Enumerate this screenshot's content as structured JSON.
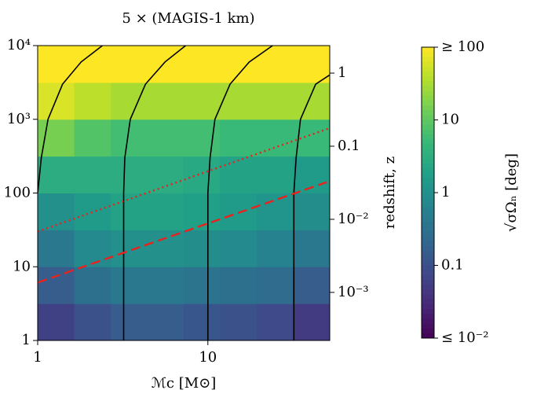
{
  "chart_data": {
    "type": "heatmap",
    "title": "5 × (MAGIS-1 km)",
    "x_label": "ℳc [M⊙]",
    "y2_label": "redshift, z",
    "colorbar_label": "√σΩₙ [deg]",
    "log_x": true,
    "log_y": true,
    "log_y2": true,
    "log_color": true,
    "colormap": "viridis",
    "xlim": [
      1,
      52
    ],
    "xticks": [
      1,
      10
    ],
    "ylim": [
      1,
      10000
    ],
    "yticks": [
      1,
      10,
      100,
      {
        "value": 1000,
        "label": "10³"
      },
      {
        "value": 10000,
        "label": "10⁴"
      }
    ],
    "y2lim": [
      0.00022,
      2.38
    ],
    "y2ticks": [
      1,
      0.1,
      {
        "value": 0.01,
        "label": "10⁻²"
      },
      {
        "value": 0.001,
        "label": "10⁻³"
      }
    ],
    "clim": [
      0.01,
      100
    ],
    "cticks": [
      {
        "value": 100,
        "label": "≥ 100"
      },
      10,
      1,
      0.1,
      {
        "value": 0.01,
        "label": "≤ 10⁻²"
      }
    ],
    "heatmap": {
      "x_edges": [
        1,
        1.64,
        2.69,
        4.4,
        7.22,
        11.8,
        19.4,
        31.8,
        52
      ],
      "y_edges": [
        1,
        3.16,
        10,
        31.6,
        100,
        316,
        1000,
        3160,
        10000
      ],
      "z": [
        [
          0.06,
          0.1,
          0.15,
          0.15,
          0.12,
          0.1,
          0.08,
          0.05
        ],
        [
          0.15,
          0.3,
          0.4,
          0.4,
          0.35,
          0.3,
          0.25,
          0.15
        ],
        [
          0.4,
          0.8,
          1,
          1,
          0.9,
          0.8,
          0.6,
          0.4
        ],
        [
          1,
          1.5,
          2,
          2,
          1.8,
          1.5,
          1.2,
          0.9
        ],
        [
          3,
          3,
          3,
          3,
          2.5,
          2,
          2,
          1.5
        ],
        [
          15,
          8,
          6,
          6,
          6,
          5,
          5,
          5
        ],
        [
          60,
          40,
          30,
          30,
          30,
          30,
          30,
          30
        ],
        [
          100,
          100,
          100,
          100,
          100,
          100,
          100,
          100
        ]
      ]
    },
    "series": [
      {
        "color": "#000000",
        "style": "solid",
        "x": [
          1,
          1.05,
          1.15,
          1.4,
          1.8,
          2.4
        ],
        "values": [
          100,
          300,
          1000,
          3000,
          6000,
          10000
        ]
      },
      {
        "color": "#000000",
        "style": "solid",
        "x": [
          3.2,
          3.2,
          3.25,
          3.5,
          4.3,
          5.6,
          7.4
        ],
        "values": [
          1,
          100,
          300,
          1000,
          3000,
          6000,
          10000
        ]
      },
      {
        "color": "#000000",
        "style": "solid",
        "x": [
          10,
          10,
          10.3,
          11,
          13.5,
          17.5,
          24
        ],
        "values": [
          1,
          100,
          300,
          1000,
          3000,
          6000,
          10000
        ]
      },
      {
        "color": "#000000",
        "style": "solid",
        "x": [
          32,
          32,
          33,
          35,
          43,
          52
        ],
        "values": [
          1,
          100,
          300,
          1000,
          3000,
          4000
        ]
      },
      {
        "color": "#e8221c",
        "style": "dotted",
        "x": [
          1,
          52
        ],
        "values": [
          30,
          760
        ]
      },
      {
        "color": "#e8221c",
        "style": "dashed",
        "x": [
          1,
          52
        ],
        "values": [
          6.1,
          145
        ]
      }
    ]
  }
}
